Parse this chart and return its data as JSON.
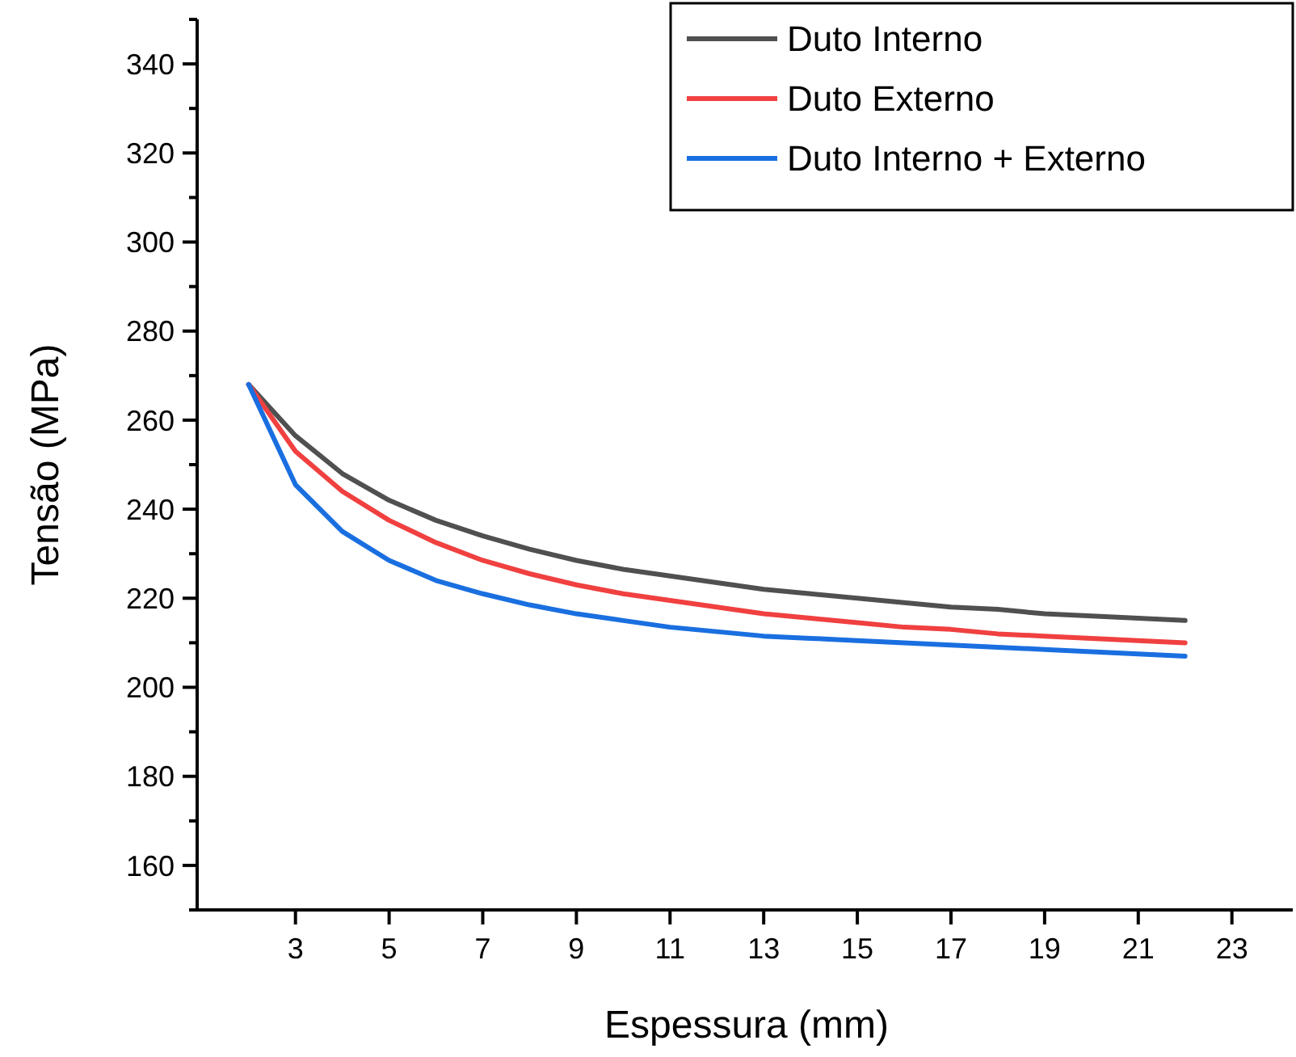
{
  "chart_data": {
    "type": "line",
    "xlabel": "Espessura (mm)",
    "ylabel": "Tensão (MPa)",
    "x": [
      2,
      3,
      4,
      5,
      6,
      7,
      8,
      9,
      10,
      11,
      12,
      13,
      14,
      15,
      16,
      17,
      18,
      19,
      20,
      21,
      22
    ],
    "series": [
      {
        "name": "Duto Interno",
        "color": "#505050",
        "values": [
          268,
          256.5,
          248,
          242,
          237.5,
          234,
          231,
          228.5,
          226.5,
          225,
          223.5,
          222,
          221,
          220,
          219,
          218,
          217.5,
          216.5,
          216,
          215.5,
          215
        ]
      },
      {
        "name": "Duto Externo",
        "color": "#f04040",
        "values": [
          268,
          253,
          244,
          237.5,
          232.5,
          228.5,
          225.5,
          223,
          221,
          219.5,
          218,
          216.5,
          215.5,
          214.5,
          213.5,
          213,
          212,
          211.5,
          211,
          210.5,
          210
        ]
      },
      {
        "name": "Duto Interno + Externo",
        "color": "#1a6fe0",
        "values": [
          268,
          245.5,
          235,
          228.5,
          224,
          221,
          218.5,
          216.5,
          215,
          213.5,
          212.5,
          211.5,
          211,
          210.5,
          210,
          209.5,
          209,
          208.5,
          208,
          207.5,
          207
        ]
      }
    ],
    "xlim": [
      0.9,
      24.3
    ],
    "xticks": [
      3,
      5,
      7,
      9,
      11,
      13,
      15,
      17,
      19,
      21,
      23
    ],
    "ylim": [
      150,
      350
    ],
    "yticks": [
      {
        "value": 150,
        "label": null
      },
      160,
      {
        "value": 170,
        "label": null
      },
      180,
      {
        "value": 190,
        "label": null
      },
      200,
      {
        "value": 210,
        "label": null
      },
      220,
      {
        "value": 230,
        "label": null
      },
      240,
      {
        "value": 250,
        "label": null
      },
      260,
      {
        "value": 270,
        "label": null
      },
      280,
      {
        "value": 290,
        "label": null
      },
      300,
      {
        "value": 310,
        "label": null
      },
      320,
      {
        "value": 330,
        "label": null
      },
      340,
      {
        "value": 350,
        "label": null
      }
    ],
    "legend": "top right",
    "grid": false,
    "line_style": "solid",
    "marker": "none"
  }
}
